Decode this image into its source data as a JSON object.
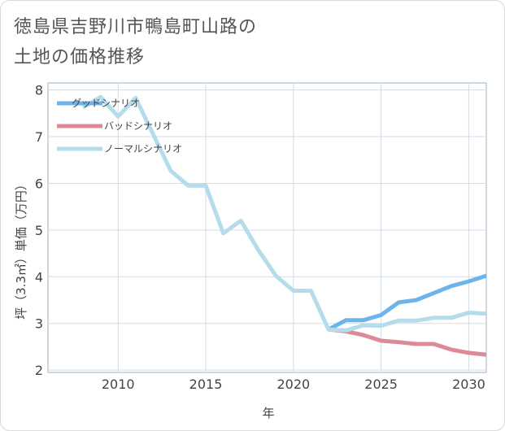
{
  "title_line1": "徳島県吉野川市鴨島町山路の",
  "title_line2": "土地の価格推移",
  "chart_data": {
    "type": "line",
    "xlabel": "年",
    "ylabel": "坪（3.3㎡）単価（万円）",
    "xlim": [
      2006,
      2031
    ],
    "ylim": [
      1.95,
      8.15
    ],
    "xticks": [
      2010,
      2015,
      2020,
      2025,
      2030
    ],
    "yticks": [
      2,
      3,
      4,
      5,
      6,
      7,
      8
    ],
    "legend_position": "top-left",
    "series": [
      {
        "name": "グッドシナリオ",
        "color": "#6cb4ea",
        "x": [
          2022,
          2023,
          2024,
          2025,
          2026,
          2027,
          2028,
          2029,
          2030,
          2031
        ],
        "y": [
          2.87,
          3.07,
          3.07,
          3.18,
          3.45,
          3.5,
          3.65,
          3.8,
          3.9,
          4.02
        ]
      },
      {
        "name": "バッドシナリオ",
        "color": "#dc8b96",
        "x": [
          2022,
          2023,
          2024,
          2025,
          2026,
          2027,
          2028,
          2029,
          2030,
          2031
        ],
        "y": [
          2.87,
          2.83,
          2.75,
          2.63,
          2.6,
          2.56,
          2.56,
          2.44,
          2.37,
          2.33
        ]
      },
      {
        "name": "ノーマルシナリオ",
        "color": "#b4dceb",
        "x": [
          2008,
          2009,
          2010,
          2011,
          2012,
          2013,
          2014,
          2015,
          2016,
          2017,
          2018,
          2019,
          2020,
          2021,
          2022,
          2023,
          2024,
          2025,
          2026,
          2027,
          2028,
          2029,
          2030,
          2031
        ],
        "y": [
          7.62,
          7.85,
          7.43,
          7.83,
          7.05,
          6.27,
          5.95,
          5.95,
          4.93,
          5.2,
          4.57,
          4.02,
          3.7,
          3.7,
          2.87,
          2.85,
          2.96,
          2.95,
          3.06,
          3.06,
          3.12,
          3.12,
          3.23,
          3.21
        ]
      }
    ]
  }
}
